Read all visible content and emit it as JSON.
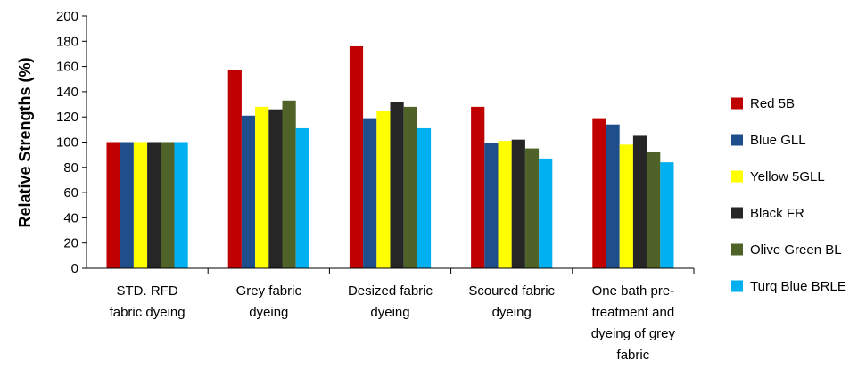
{
  "chart_data": {
    "type": "bar",
    "title": "",
    "xlabel": "",
    "ylabel": "Relative Strengths (%)",
    "ylim": [
      0,
      200
    ],
    "yticks": [
      0,
      20,
      40,
      60,
      80,
      100,
      120,
      140,
      160,
      180,
      200
    ],
    "grid": false,
    "legend_position": "right",
    "categories": [
      [
        "STD. RFD",
        "fabric dyeing"
      ],
      [
        "Grey fabric",
        "dyeing"
      ],
      [
        "Desized fabric",
        "dyeing"
      ],
      [
        "Scoured fabric",
        "dyeing"
      ],
      [
        "One bath pre-",
        "treatment and",
        "dyeing of grey",
        "fabric"
      ]
    ],
    "series": [
      {
        "name": "Red 5B",
        "color": "#c00000",
        "values": [
          100,
          157,
          176,
          128,
          119
        ]
      },
      {
        "name": "Blue GLL",
        "color": "#1f4e8c",
        "values": [
          100,
          121,
          119,
          99,
          114
        ]
      },
      {
        "name": "Yellow 5GLL",
        "color": "#ffff00",
        "values": [
          100,
          128,
          125,
          101,
          98
        ]
      },
      {
        "name": "Black FR",
        "color": "#262626",
        "values": [
          100,
          126,
          132,
          102,
          105
        ]
      },
      {
        "name": "Olive Green BL",
        "color": "#4f6228",
        "values": [
          100,
          133,
          128,
          95,
          92
        ]
      },
      {
        "name": "Turq Blue BRLE",
        "color": "#00b0f0",
        "values": [
          100,
          111,
          111,
          87,
          84
        ]
      }
    ]
  }
}
